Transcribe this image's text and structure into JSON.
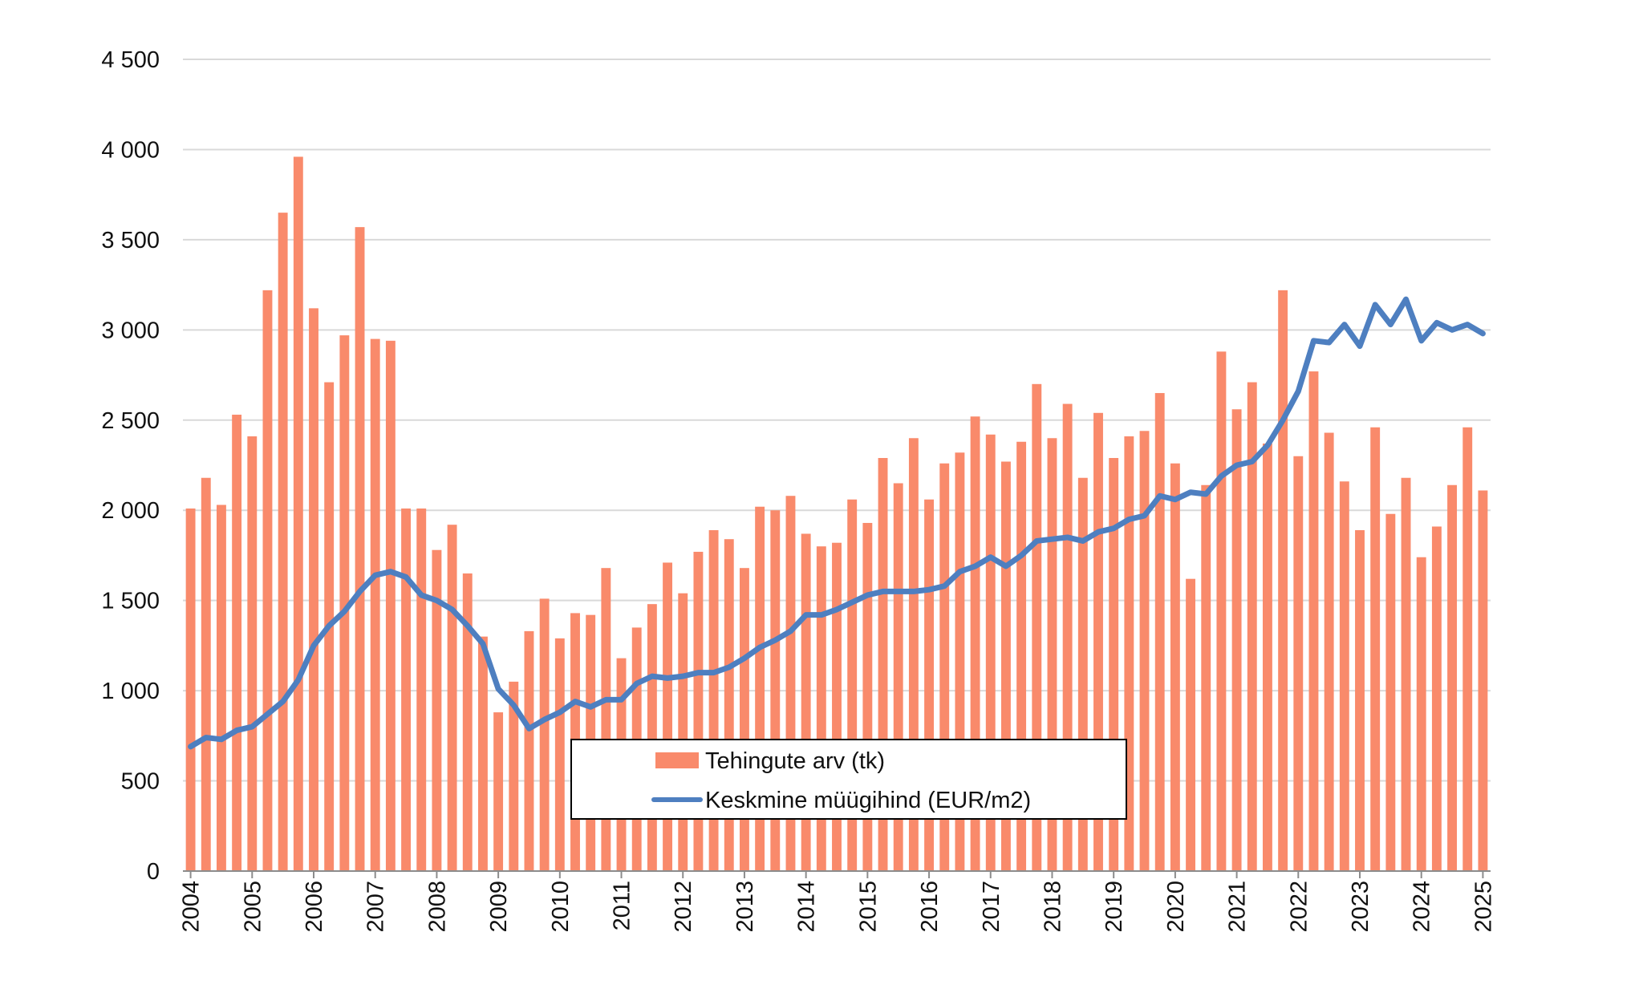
{
  "chart_data": {
    "type": "bar",
    "title": "",
    "xlabel": "",
    "ylabel": "",
    "ylim": [
      0,
      4500
    ],
    "y_ticks": [
      0,
      500,
      1000,
      1500,
      2000,
      2500,
      3000,
      3500,
      4000,
      4500
    ],
    "y_tick_labels": [
      "0",
      "500",
      "1 000",
      "1 500",
      "2 000",
      "2 500",
      "3 000",
      "3 500",
      "4 000",
      "4 500"
    ],
    "x_tick_labels": [
      "2004",
      "2005",
      "2006",
      "2007",
      "2008",
      "2009",
      "2010",
      "2011",
      "2012",
      "2013",
      "2014",
      "2015",
      "2016",
      "2017",
      "2018",
      "2019",
      "2020",
      "2021",
      "2022",
      "2023",
      "2024",
      "2025"
    ],
    "grid": true,
    "legend_position": "bottom-center",
    "colors": {
      "bars": "#f98a6b",
      "line": "#4e7fc0",
      "grid": "#d9d9d9",
      "axis": "#8c8c8c"
    },
    "series": [
      {
        "name": "Tehingute arv (tk)",
        "type": "bar",
        "values": [
          2010,
          2180,
          2030,
          2530,
          2410,
          3220,
          3650,
          3960,
          3120,
          2710,
          2970,
          3570,
          2950,
          2940,
          2010,
          2010,
          1780,
          1920,
          1650,
          1300,
          880,
          1050,
          1330,
          1510,
          1290,
          1430,
          1420,
          1680,
          1180,
          1350,
          1480,
          1710,
          1540,
          1770,
          1890,
          1840,
          1680,
          2020,
          2000,
          2080,
          1870,
          1800,
          1820,
          2060,
          1930,
          2290,
          2150,
          2400,
          2060,
          2260,
          2320,
          2520,
          2420,
          2270,
          2380,
          2700,
          2400,
          2590,
          2180,
          2540,
          2290,
          2410,
          2440,
          2650,
          2260,
          1620,
          2140,
          2880,
          2560,
          2710,
          2370,
          3220,
          2300,
          2770,
          2430,
          2160,
          1890,
          2460,
          1980,
          2180,
          1740,
          1910,
          2140,
          2460,
          2110
        ]
      },
      {
        "name": "Keskmine müügihind (EUR/m2)",
        "type": "line",
        "values": [
          690,
          740,
          730,
          780,
          800,
          870,
          940,
          1060,
          1250,
          1360,
          1440,
          1550,
          1640,
          1660,
          1630,
          1530,
          1500,
          1450,
          1360,
          1260,
          1010,
          920,
          790,
          840,
          880,
          940,
          910,
          950,
          950,
          1040,
          1080,
          1070,
          1080,
          1100,
          1100,
          1130,
          1180,
          1240,
          1280,
          1330,
          1420,
          1420,
          1450,
          1490,
          1530,
          1550,
          1550,
          1550,
          1560,
          1580,
          1660,
          1690,
          1740,
          1690,
          1750,
          1830,
          1840,
          1850,
          1830,
          1880,
          1900,
          1950,
          1970,
          2080,
          2060,
          2100,
          2090,
          2190,
          2250,
          2270,
          2360,
          2500,
          2660,
          2940,
          2930,
          3030,
          2910,
          3140,
          3030,
          3170,
          2940,
          3040,
          3000,
          3030,
          2980
        ]
      }
    ]
  }
}
